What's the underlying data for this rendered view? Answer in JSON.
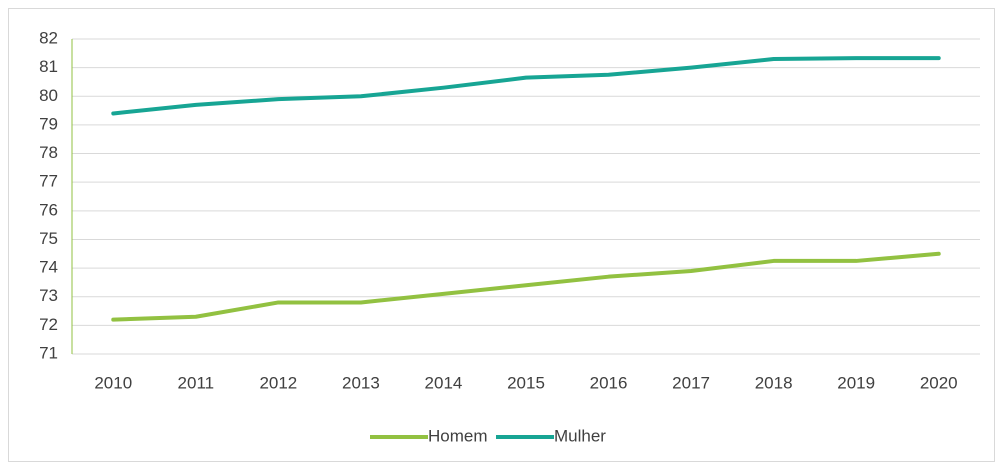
{
  "chart_data": {
    "type": "line",
    "categories": [
      "2010",
      "2011",
      "2012",
      "2013",
      "2014",
      "2015",
      "2016",
      "2017",
      "2018",
      "2019",
      "2020"
    ],
    "series": [
      {
        "name": "Homem",
        "color": "#92c141",
        "values": [
          72.2,
          72.3,
          72.8,
          72.8,
          73.1,
          73.4,
          73.7,
          73.9,
          74.25,
          74.25,
          74.5
        ]
      },
      {
        "name": "Mulher",
        "color": "#17a594",
        "values": [
          79.4,
          79.7,
          79.9,
          80.0,
          80.3,
          80.65,
          80.75,
          81.0,
          81.3,
          81.33,
          81.33
        ]
      }
    ],
    "ylim": [
      71,
      82
    ],
    "yticks": [
      71,
      72,
      73,
      74,
      75,
      76,
      77,
      78,
      79,
      80,
      81,
      82
    ],
    "grid": true,
    "legend": "bottom"
  }
}
